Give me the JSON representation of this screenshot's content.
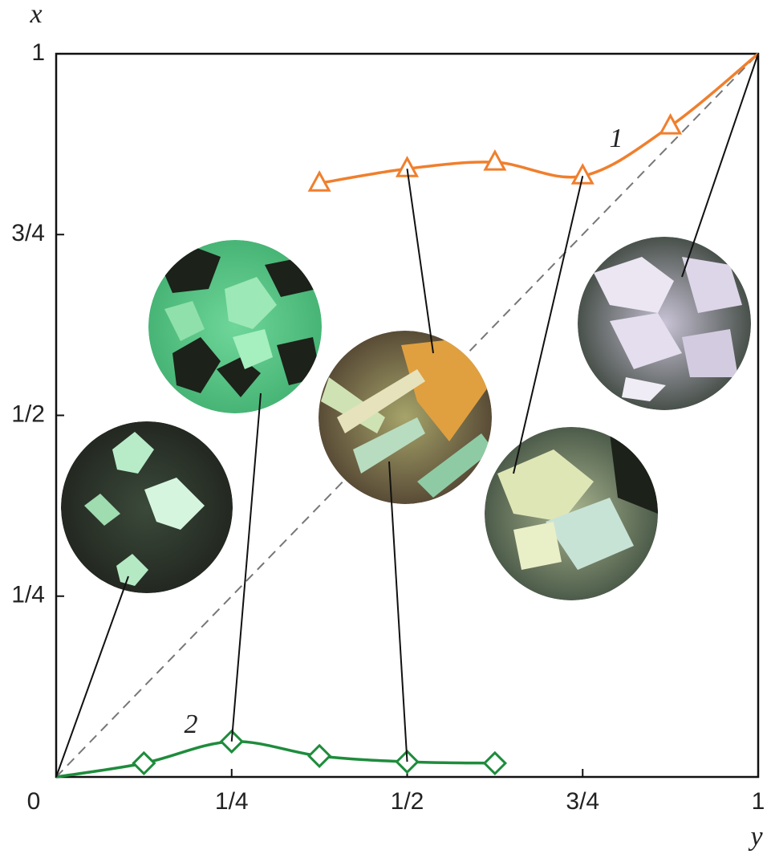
{
  "chart_data": {
    "type": "line",
    "xlabel": "y",
    "ylabel": "x",
    "xlim": [
      0,
      1
    ],
    "ylim": [
      0,
      1
    ],
    "xticks": [
      0,
      {
        "value": 0.25,
        "label": "1/4"
      },
      {
        "value": 0.5,
        "label": "1/2"
      },
      {
        "value": 0.75,
        "label": "3/4"
      },
      1
    ],
    "yticks": [
      {
        "value": 0.25,
        "label": "1/4"
      },
      {
        "value": 0.5,
        "label": "1/2"
      },
      {
        "value": 0.75,
        "label": "3/4"
      },
      1
    ],
    "diagonal": true,
    "series": [
      {
        "name": "1",
        "color": "#f07f2d",
        "marker": "triangle",
        "x": [
          0.375,
          0.5,
          0.625,
          0.75,
          0.875,
          1
        ],
        "values": [
          0.821,
          0.841,
          0.85,
          0.831,
          0.9,
          1
        ]
      },
      {
        "name": "2",
        "color": "#1e8c3c",
        "marker": "diamond",
        "x": [
          0,
          0.125,
          0.25,
          0.375,
          0.5,
          0.625
        ],
        "values": [
          0,
          0.019,
          0.049,
          0.029,
          0.021,
          0.019
        ]
      }
    ]
  }
}
